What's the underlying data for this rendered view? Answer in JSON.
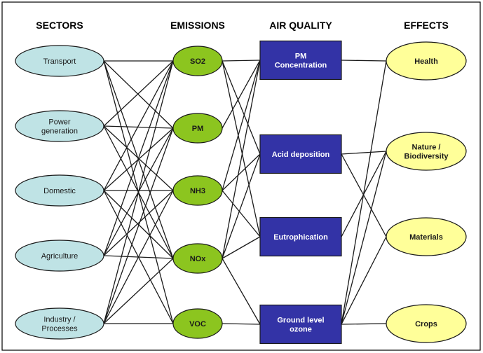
{
  "columns": {
    "sectors": "SECTORS",
    "emissions": "EMISSIONS",
    "air_quality": "AIR QUALITY",
    "effects": "EFFECTS"
  },
  "sectors": [
    {
      "id": "transport",
      "lines": [
        "Transport"
      ]
    },
    {
      "id": "power",
      "lines": [
        "Power",
        "generation"
      ]
    },
    {
      "id": "domestic",
      "lines": [
        "Domestic"
      ]
    },
    {
      "id": "agriculture",
      "lines": [
        "Agriculture"
      ]
    },
    {
      "id": "industry",
      "lines": [
        "Industry /",
        "Processes"
      ]
    }
  ],
  "emissions": [
    {
      "id": "so2",
      "lines": [
        "SO2"
      ]
    },
    {
      "id": "pm",
      "lines": [
        "PM"
      ]
    },
    {
      "id": "nh3",
      "lines": [
        "NH3"
      ]
    },
    {
      "id": "nox",
      "lines": [
        "NOx"
      ]
    },
    {
      "id": "voc",
      "lines": [
        "VOC"
      ]
    }
  ],
  "air_quality": [
    {
      "id": "pmconc",
      "lines": [
        "PM",
        "Concentration"
      ]
    },
    {
      "id": "acid",
      "lines": [
        "Acid deposition"
      ]
    },
    {
      "id": "eutro",
      "lines": [
        "Eutrophication"
      ]
    },
    {
      "id": "ozone",
      "lines": [
        "Ground level",
        "ozone"
      ]
    }
  ],
  "effects": [
    {
      "id": "health",
      "lines": [
        "Health"
      ]
    },
    {
      "id": "nature",
      "lines": [
        "Nature /",
        "Biodiversity"
      ]
    },
    {
      "id": "materials",
      "lines": [
        "Materials"
      ]
    },
    {
      "id": "crops",
      "lines": [
        "Crops"
      ]
    }
  ],
  "links": {
    "sector_emission": [
      [
        "transport",
        "so2"
      ],
      [
        "transport",
        "pm"
      ],
      [
        "transport",
        "nox"
      ],
      [
        "transport",
        "voc"
      ],
      [
        "power",
        "so2"
      ],
      [
        "power",
        "pm"
      ],
      [
        "power",
        "nox"
      ],
      [
        "power",
        "nh3"
      ],
      [
        "domestic",
        "so2"
      ],
      [
        "domestic",
        "pm"
      ],
      [
        "domestic",
        "nh3"
      ],
      [
        "domestic",
        "nox"
      ],
      [
        "domestic",
        "voc"
      ],
      [
        "agriculture",
        "so2"
      ],
      [
        "agriculture",
        "pm"
      ],
      [
        "agriculture",
        "nh3"
      ],
      [
        "agriculture",
        "nox"
      ],
      [
        "industry",
        "so2"
      ],
      [
        "industry",
        "pm"
      ],
      [
        "industry",
        "nh3"
      ],
      [
        "industry",
        "nox"
      ],
      [
        "industry",
        "voc"
      ]
    ],
    "emission_airquality": [
      [
        "so2",
        "pmconc"
      ],
      [
        "so2",
        "acid"
      ],
      [
        "so2",
        "eutro"
      ],
      [
        "pm",
        "pmconc"
      ],
      [
        "nh3",
        "pmconc"
      ],
      [
        "nh3",
        "acid"
      ],
      [
        "nh3",
        "eutro"
      ],
      [
        "nox",
        "pmconc"
      ],
      [
        "nox",
        "acid"
      ],
      [
        "nox",
        "eutro"
      ],
      [
        "nox",
        "ozone"
      ],
      [
        "voc",
        "ozone"
      ]
    ],
    "airquality_effect": [
      [
        "pmconc",
        "health"
      ],
      [
        "acid",
        "nature"
      ],
      [
        "acid",
        "materials"
      ],
      [
        "eutro",
        "nature"
      ],
      [
        "ozone",
        "health"
      ],
      [
        "ozone",
        "nature"
      ],
      [
        "ozone",
        "materials"
      ],
      [
        "ozone",
        "crops"
      ]
    ]
  },
  "colors": {
    "sector_fill": "#bfe3e5",
    "emission_fill": "#8cc51f",
    "airquality_fill": "#3333a6",
    "effect_fill": "#ffff99",
    "stroke": "#1a1a1a",
    "link": "#1a1a1a",
    "frame": "#000000"
  }
}
